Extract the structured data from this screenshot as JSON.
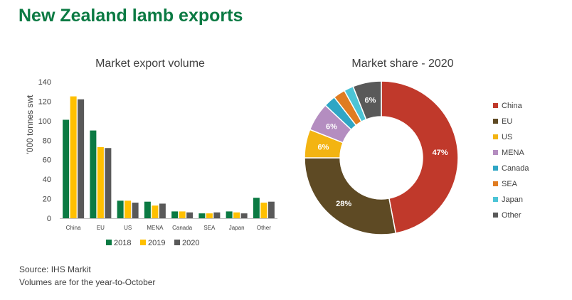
{
  "title": "New Zealand lamb exports",
  "source": [
    "Source: IHS Markit",
    "Volumes are for the year-to-October"
  ],
  "colors": {
    "2018": "#0b7a43",
    "2019": "#ffc000",
    "2020": "#595959"
  },
  "chart_data": [
    {
      "type": "bar",
      "title": "Market export volume",
      "ylabel": "'000 tonnes swt",
      "xlabel": "",
      "ylim": [
        0,
        140
      ],
      "yticks": [
        0,
        20,
        40,
        60,
        80,
        100,
        120,
        140
      ],
      "grid": false,
      "legend": "bottom",
      "categories": [
        "China",
        "EU",
        "US",
        "MENA",
        "Canada",
        "SEA",
        "Japan",
        "Other"
      ],
      "series": [
        {
          "name": "2018",
          "color": "#0b7a43",
          "values": [
            101,
            90,
            18,
            17,
            7,
            5,
            7,
            21
          ]
        },
        {
          "name": "2019",
          "color": "#ffc000",
          "values": [
            125,
            73,
            18,
            13,
            7,
            5,
            6,
            16
          ]
        },
        {
          "name": "2020",
          "color": "#595959",
          "values": [
            122,
            72,
            16,
            15,
            6,
            6,
            5,
            17
          ]
        }
      ]
    },
    {
      "type": "pie",
      "title": "Market share - 2020",
      "legend": "right",
      "labels": [
        "China",
        "EU",
        "US",
        "MENA",
        "Canada",
        "SEA",
        "Japan",
        "Other"
      ],
      "values": [
        47,
        28,
        6,
        6,
        2.5,
        2.5,
        2,
        6
      ],
      "data_labels": [
        "47%",
        "28%",
        "6%",
        "6%",
        "",
        "",
        "",
        "6%"
      ],
      "colors": [
        "#c0392b",
        "#5e4a24",
        "#f3b412",
        "#b48dc0",
        "#2fa6c5",
        "#e07c22",
        "#4cc4d6",
        "#595959"
      ]
    }
  ]
}
